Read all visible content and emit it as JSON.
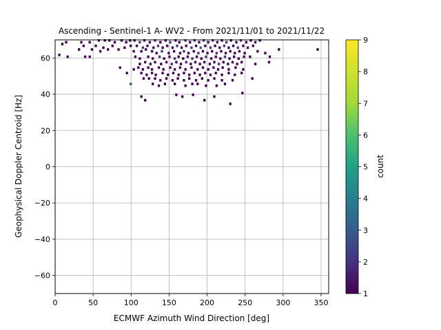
{
  "chart_data": {
    "type": "heatmap",
    "title": "Ascending - Sentinel-1 A- WV2 - From 2021/11/01 to 2021/11/22",
    "xlabel": "ECMWF Azimuth Wind Direction [deg]",
    "ylabel": "Geophysical Doppler Centroid [Hz]",
    "xlim": [
      0,
      360
    ],
    "ylim": [
      -70,
      70
    ],
    "xticks": [
      0,
      50,
      100,
      150,
      200,
      250,
      300,
      350
    ],
    "yticks": [
      -60,
      -40,
      -20,
      0,
      20,
      40,
      60
    ],
    "grid": true,
    "colorbar": {
      "label": "count",
      "min": 1,
      "max": 9,
      "ticks": [
        1,
        2,
        3,
        4,
        5,
        6,
        7,
        8,
        9
      ],
      "colormap": "viridis"
    },
    "cell_size": {
      "x_deg": 3,
      "y_hz": 1.4
    },
    "cells": [
      [
        8,
        67,
        1
      ],
      [
        13,
        68,
        1
      ],
      [
        33,
        68,
        1
      ],
      [
        44,
        68,
        1
      ],
      [
        56,
        69,
        1
      ],
      [
        64,
        69,
        1
      ],
      [
        70,
        69,
        1
      ],
      [
        77,
        68,
        1
      ],
      [
        86,
        69,
        1
      ],
      [
        92,
        68,
        1
      ],
      [
        97,
        69,
        1
      ],
      [
        103,
        69,
        1
      ],
      [
        110,
        68,
        2
      ],
      [
        116,
        69,
        1
      ],
      [
        123,
        68,
        1
      ],
      [
        130,
        69,
        2
      ],
      [
        137,
        68,
        1
      ],
      [
        144,
        69,
        1
      ],
      [
        150,
        68,
        2
      ],
      [
        157,
        69,
        1
      ],
      [
        162,
        68,
        1
      ],
      [
        170,
        69,
        2
      ],
      [
        176,
        68,
        1
      ],
      [
        182,
        69,
        2
      ],
      [
        188,
        68,
        1
      ],
      [
        194,
        69,
        2
      ],
      [
        200,
        68,
        1
      ],
      [
        206,
        69,
        2
      ],
      [
        212,
        68,
        1
      ],
      [
        218,
        69,
        1
      ],
      [
        224,
        68,
        2
      ],
      [
        230,
        69,
        1
      ],
      [
        237,
        68,
        1
      ],
      [
        243,
        69,
        2
      ],
      [
        250,
        68,
        1
      ],
      [
        256,
        69,
        1
      ],
      [
        262,
        68,
        1
      ],
      [
        268,
        69,
        1
      ],
      [
        36,
        66,
        1
      ],
      [
        52,
        66,
        1
      ],
      [
        62,
        65,
        1
      ],
      [
        74,
        66,
        1
      ],
      [
        90,
        65,
        1
      ],
      [
        98,
        66,
        1
      ],
      [
        106,
        66,
        1
      ],
      [
        114,
        65,
        2
      ],
      [
        120,
        66,
        1
      ],
      [
        128,
        65,
        1
      ],
      [
        134,
        66,
        2
      ],
      [
        140,
        65,
        1
      ],
      [
        146,
        66,
        1
      ],
      [
        153,
        65,
        1
      ],
      [
        159,
        66,
        2
      ],
      [
        165,
        65,
        1
      ],
      [
        171,
        66,
        1
      ],
      [
        178,
        65,
        2
      ],
      [
        184,
        66,
        1
      ],
      [
        190,
        65,
        3
      ],
      [
        196,
        66,
        1
      ],
      [
        203,
        65,
        2
      ],
      [
        209,
        66,
        1
      ],
      [
        215,
        65,
        1
      ],
      [
        221,
        66,
        2
      ],
      [
        227,
        65,
        1
      ],
      [
        233,
        66,
        1
      ],
      [
        239,
        65,
        2
      ],
      [
        246,
        66,
        1
      ],
      [
        252,
        65,
        1
      ],
      [
        259,
        66,
        1
      ],
      [
        30,
        64,
        1
      ],
      [
        47,
        64,
        1
      ],
      [
        58,
        63,
        1
      ],
      [
        68,
        64,
        1
      ],
      [
        82,
        64,
        1
      ],
      [
        102,
        63,
        1
      ],
      [
        112,
        63,
        1
      ],
      [
        118,
        64,
        1
      ],
      [
        126,
        63,
        1
      ],
      [
        132,
        62,
        1
      ],
      [
        139,
        63,
        2
      ],
      [
        148,
        62,
        1
      ],
      [
        155,
        63,
        1
      ],
      [
        163,
        62,
        1
      ],
      [
        168,
        63,
        2
      ],
      [
        174,
        62,
        1
      ],
      [
        181,
        63,
        1
      ],
      [
        187,
        62,
        2
      ],
      [
        193,
        63,
        1
      ],
      [
        199,
        62,
        1
      ],
      [
        205,
        63,
        1
      ],
      [
        211,
        62,
        2
      ],
      [
        217,
        63,
        1
      ],
      [
        223,
        62,
        1
      ],
      [
        229,
        63,
        1
      ],
      [
        235,
        62,
        1
      ],
      [
        241,
        63,
        1
      ],
      [
        248,
        62,
        1
      ],
      [
        265,
        63,
        1
      ],
      [
        275,
        62,
        1
      ],
      [
        293,
        64,
        1
      ],
      [
        344,
        64,
        1
      ],
      [
        4,
        61,
        1
      ],
      [
        15,
        60,
        1
      ],
      [
        38,
        60,
        1
      ],
      [
        44,
        60,
        1
      ],
      [
        104,
        60,
        1
      ],
      [
        110,
        59,
        1
      ],
      [
        121,
        60,
        1
      ],
      [
        127,
        59,
        1
      ],
      [
        136,
        60,
        2
      ],
      [
        142,
        59,
        1
      ],
      [
        149,
        60,
        1
      ],
      [
        156,
        59,
        2
      ],
      [
        161,
        60,
        1
      ],
      [
        167,
        59,
        1
      ],
      [
        173,
        60,
        1
      ],
      [
        179,
        59,
        2
      ],
      [
        185,
        60,
        1
      ],
      [
        191,
        59,
        1
      ],
      [
        197,
        60,
        2
      ],
      [
        204,
        59,
        1
      ],
      [
        210,
        60,
        1
      ],
      [
        216,
        59,
        1
      ],
      [
        222,
        60,
        2
      ],
      [
        228,
        59,
        1
      ],
      [
        234,
        60,
        1
      ],
      [
        240,
        59,
        1
      ],
      [
        247,
        60,
        1
      ],
      [
        255,
        60,
        1
      ],
      [
        281,
        60,
        1
      ],
      [
        280,
        57,
        1
      ],
      [
        110,
        56,
        1
      ],
      [
        117,
        57,
        1
      ],
      [
        124,
        56,
        1
      ],
      [
        130,
        57,
        1
      ],
      [
        138,
        56,
        1
      ],
      [
        145,
        57,
        1
      ],
      [
        152,
        56,
        2
      ],
      [
        158,
        57,
        1
      ],
      [
        164,
        56,
        1
      ],
      [
        171,
        57,
        2
      ],
      [
        177,
        56,
        1
      ],
      [
        183,
        57,
        1
      ],
      [
        189,
        56,
        1
      ],
      [
        195,
        57,
        1
      ],
      [
        202,
        56,
        1
      ],
      [
        208,
        57,
        1
      ],
      [
        214,
        56,
        2
      ],
      [
        220,
        57,
        1
      ],
      [
        226,
        56,
        1
      ],
      [
        232,
        57,
        1
      ],
      [
        238,
        56,
        1
      ],
      [
        244,
        57,
        1
      ],
      [
        262,
        56,
        1
      ],
      [
        84,
        54,
        1
      ],
      [
        102,
        53,
        1
      ],
      [
        108,
        54,
        1
      ],
      [
        114,
        53,
        1
      ],
      [
        121,
        54,
        1
      ],
      [
        126,
        53,
        1
      ],
      [
        135,
        54,
        1
      ],
      [
        141,
        53,
        1
      ],
      [
        150,
        54,
        1
      ],
      [
        156,
        53,
        1
      ],
      [
        163,
        54,
        1
      ],
      [
        170,
        53,
        1
      ],
      [
        178,
        54,
        1
      ],
      [
        186,
        53,
        1
      ],
      [
        193,
        54,
        1
      ],
      [
        200,
        53,
        1
      ],
      [
        207,
        54,
        1
      ],
      [
        213,
        53,
        1
      ],
      [
        219,
        54,
        1
      ],
      [
        227,
        53,
        1
      ],
      [
        236,
        54,
        1
      ],
      [
        246,
        53,
        1
      ],
      [
        93,
        51,
        1
      ],
      [
        112,
        51,
        1
      ],
      [
        119,
        50,
        1
      ],
      [
        126,
        51,
        1
      ],
      [
        131,
        50,
        1
      ],
      [
        140,
        51,
        1
      ],
      [
        147,
        50,
        1
      ],
      [
        154,
        51,
        1
      ],
      [
        161,
        50,
        1
      ],
      [
        168,
        51,
        1
      ],
      [
        175,
        50,
        1
      ],
      [
        182,
        51,
        1
      ],
      [
        189,
        50,
        1
      ],
      [
        196,
        51,
        1
      ],
      [
        203,
        50,
        1
      ],
      [
        210,
        51,
        1
      ],
      [
        218,
        50,
        1
      ],
      [
        227,
        51,
        1
      ],
      [
        235,
        50,
        1
      ],
      [
        244,
        51,
        1
      ],
      [
        115,
        48,
        1
      ],
      [
        122,
        48,
        1
      ],
      [
        130,
        48,
        1
      ],
      [
        137,
        47,
        1
      ],
      [
        145,
        48,
        1
      ],
      [
        153,
        47,
        1
      ],
      [
        160,
        48,
        1
      ],
      [
        168,
        47,
        1
      ],
      [
        175,
        48,
        1
      ],
      [
        184,
        47,
        1
      ],
      [
        192,
        48,
        1
      ],
      [
        200,
        47,
        1
      ],
      [
        208,
        48,
        1
      ],
      [
        218,
        47,
        1
      ],
      [
        232,
        47,
        1
      ],
      [
        258,
        48,
        1
      ],
      [
        98,
        45,
        3
      ],
      [
        127,
        45,
        1
      ],
      [
        135,
        44,
        1
      ],
      [
        143,
        45,
        1
      ],
      [
        156,
        45,
        1
      ],
      [
        170,
        44,
        1
      ],
      [
        179,
        45,
        1
      ],
      [
        186,
        45,
        1
      ],
      [
        197,
        44,
        1
      ],
      [
        211,
        44,
        1
      ],
      [
        222,
        45,
        1
      ],
      [
        245,
        40,
        1
      ],
      [
        112,
        38,
        1
      ],
      [
        117,
        36,
        1
      ],
      [
        158,
        39,
        1
      ],
      [
        166,
        38,
        1
      ],
      [
        180,
        39,
        1
      ],
      [
        195,
        36,
        1
      ],
      [
        208,
        38,
        1
      ],
      [
        229,
        34,
        1
      ]
    ]
  }
}
